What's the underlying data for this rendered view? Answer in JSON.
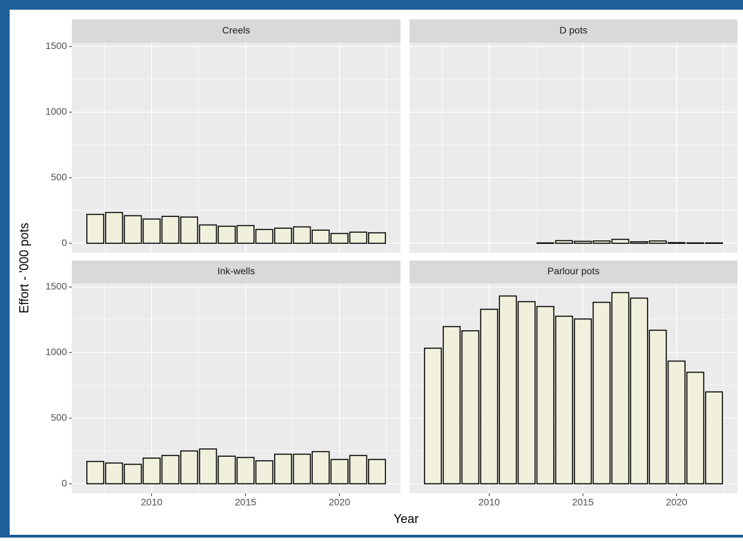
{
  "x_label": "Year",
  "y_label": "Effort - '000 pots",
  "xlim": [
    2005.75,
    2023.25
  ],
  "xticks": [
    2010,
    2015,
    2020
  ],
  "ylim": [
    -73,
    1528
  ],
  "yticks": [
    0,
    500,
    1000,
    1500
  ],
  "grid": true,
  "bar_color": "#f0f0dc",
  "bar_outline": "#000000",
  "chart_data": [
    {
      "type": "bar",
      "title": "Creels",
      "x": [
        2007,
        2008,
        2009,
        2010,
        2011,
        2012,
        2013,
        2014,
        2015,
        2016,
        2017,
        2018,
        2019,
        2020,
        2021,
        2022
      ],
      "values": [
        220,
        235,
        210,
        185,
        205,
        200,
        140,
        130,
        135,
        105,
        115,
        125,
        100,
        75,
        85,
        80
      ]
    },
    {
      "type": "bar",
      "title": "D pots",
      "x": [
        2007,
        2008,
        2009,
        2010,
        2011,
        2012,
        2013,
        2014,
        2015,
        2016,
        2017,
        2018,
        2019,
        2020,
        2021,
        2022
      ],
      "values": [
        null,
        null,
        null,
        null,
        null,
        null,
        3,
        20,
        15,
        18,
        30,
        12,
        18,
        5,
        3,
        3
      ]
    },
    {
      "type": "bar",
      "title": "Ink-wells",
      "x": [
        2007,
        2008,
        2009,
        2010,
        2011,
        2012,
        2013,
        2014,
        2015,
        2016,
        2017,
        2018,
        2019,
        2020,
        2021,
        2022
      ],
      "values": [
        170,
        158,
        148,
        195,
        215,
        250,
        265,
        210,
        200,
        175,
        225,
        225,
        245,
        185,
        215,
        185
      ]
    },
    {
      "type": "bar",
      "title": "Parlour pots",
      "x": [
        2007,
        2008,
        2009,
        2010,
        2011,
        2012,
        2013,
        2014,
        2015,
        2016,
        2017,
        2018,
        2019,
        2020,
        2021,
        2022
      ],
      "values": [
        1033,
        1198,
        1166,
        1330,
        1431,
        1388,
        1351,
        1277,
        1256,
        1383,
        1457,
        1415,
        1170,
        935,
        850,
        700
      ]
    }
  ]
}
